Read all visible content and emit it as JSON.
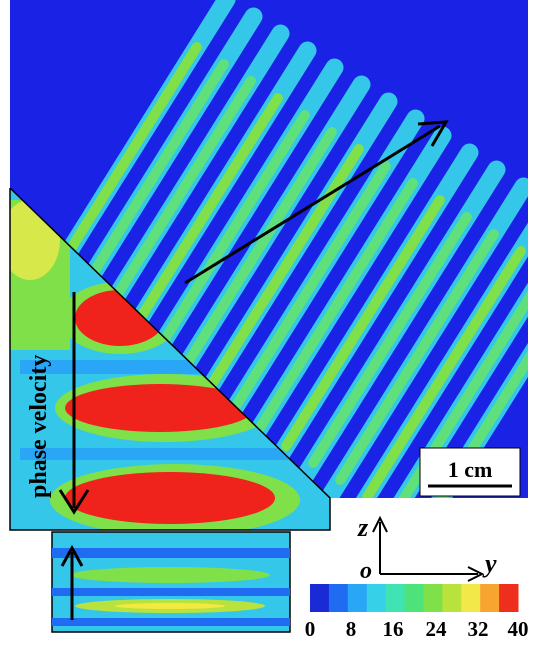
{
  "figure": {
    "vertical_label": "phase velocity",
    "scale_bar_label": "1 cm",
    "axis_labels": {
      "z": "z",
      "y": "y",
      "origin": "o"
    },
    "colorbar": {
      "ticks": [
        "0",
        "8",
        "16",
        "24",
        "32",
        "40"
      ],
      "colors": [
        "#1a2bd6",
        "#1f6cf2",
        "#2aa6f7",
        "#36d0e8",
        "#3fe3b4",
        "#4de37a",
        "#7fe04a",
        "#b9e23c",
        "#f2e84a",
        "#f7a431",
        "#ef2f1d"
      ]
    },
    "colors": {
      "background": "#1a22e6",
      "field_cyan": "#35c7ea",
      "field_green": "#5fe07a",
      "hot_red": "#f0221c",
      "hot_yellow": "#f1ea43"
    }
  }
}
